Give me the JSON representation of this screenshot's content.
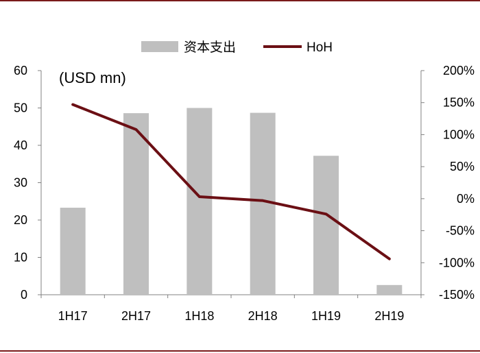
{
  "chart_data": {
    "type": "bar+line",
    "categories": [
      "1H17",
      "2H17",
      "1H18",
      "2H18",
      "1H19",
      "2H19"
    ],
    "unit_label": "(USD mn)",
    "series": [
      {
        "name": "资本支出",
        "type": "bar",
        "axis": "left",
        "values": [
          23.3,
          48.6,
          50.0,
          48.7,
          37.2,
          2.6
        ]
      },
      {
        "name": "HoH",
        "type": "line",
        "axis": "right",
        "values": [
          147,
          108,
          3,
          -3,
          -24,
          -94
        ]
      }
    ],
    "y_left": {
      "min": 0,
      "max": 60,
      "ticks": [
        "0",
        "10",
        "20",
        "30",
        "40",
        "50",
        "60"
      ]
    },
    "y_right": {
      "min": -150,
      "max": 200,
      "ticks": [
        "-150%",
        "-100%",
        "-50%",
        "0%",
        "50%",
        "100%",
        "150%",
        "200%"
      ]
    },
    "grid": false,
    "legend_position": "top-center",
    "colors": {
      "bar": "#bfbfbf",
      "line": "#6b0f14",
      "axis": "#808080",
      "frame": "#7a1a1a"
    }
  }
}
